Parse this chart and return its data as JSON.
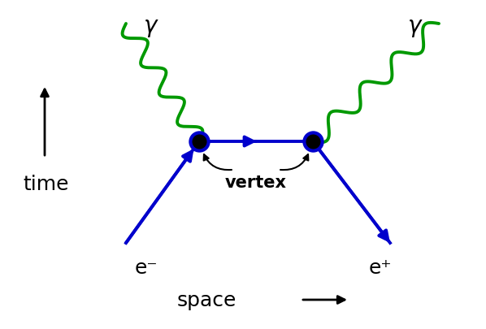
{
  "figsize": [
    5.98,
    4.06
  ],
  "dpi": 100,
  "bg_color": "white",
  "vertex1": [
    0.4,
    0.55
  ],
  "vertex2": [
    0.63,
    0.55
  ],
  "electron_color": "#0000cc",
  "photon_color": "#009900",
  "vertex_edge_color": "#0000cc",
  "line_width": 2.8,
  "time_label": "time",
  "space_label": "space",
  "gamma_label": "γ",
  "electron_label": "e⁻",
  "positron_label": "e⁺",
  "vertex_label": "vertex",
  "label_fontsize": 17,
  "axis_label_fontsize": 18,
  "vertex_label_fontsize": 14
}
